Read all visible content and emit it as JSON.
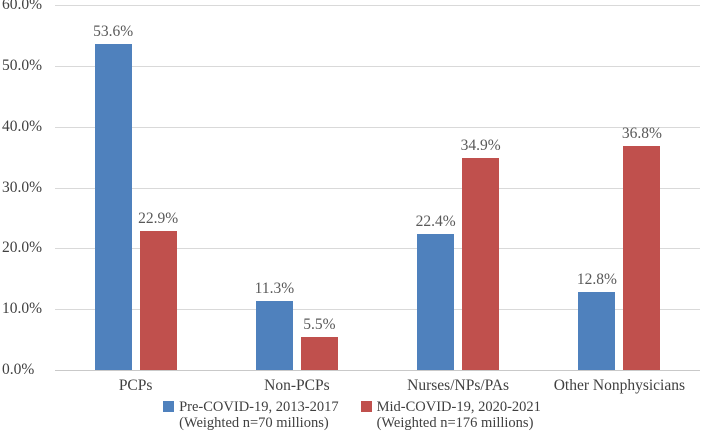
{
  "chart_data": {
    "type": "bar",
    "title": "",
    "xlabel": "",
    "ylabel": "",
    "categories": [
      "PCPs",
      "Non-PCPs",
      "Nurses/NPs/PAs",
      "Other Nonphysicians"
    ],
    "series": [
      {
        "name": "Pre-COVID-19, 2013-2017",
        "subtitle": "(Weighted n=70 millions)",
        "color": "#4F81BD",
        "values": [
          53.6,
          11.3,
          22.4,
          12.8
        ],
        "data_labels": [
          "53.6%",
          "11.3%",
          "22.4%",
          "12.8%"
        ]
      },
      {
        "name": "Mid-COVID-19, 2020-2021",
        "subtitle": "(Weighted n=176 millions)",
        "color": "#C0504D",
        "values": [
          22.9,
          5.5,
          34.9,
          36.8
        ],
        "data_labels": [
          "22.9%",
          "5.5%",
          "34.9%",
          "36.8%"
        ]
      }
    ],
    "ylim": [
      0,
      60
    ],
    "ytick_step": 10,
    "ytick_labels": [
      "0.0%",
      "10.0%",
      "20.0%",
      "30.0%",
      "40.0%",
      "50.0%",
      "60.0%"
    ],
    "grid": true,
    "legend_position": "bottom-center",
    "colors": {
      "background": "#FFFFFF",
      "gridline": "#D9D9D9",
      "axis_line": "#C9C9C9",
      "tick_text": "#404040",
      "category_text": "#404040",
      "data_label_text": "#595959",
      "legend_text": "#404040"
    }
  }
}
